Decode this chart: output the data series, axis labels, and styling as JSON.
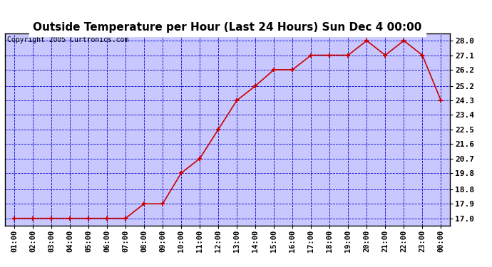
{
  "title": "Outside Temperature per Hour (Last 24 Hours) Sun Dec 4 00:00",
  "copyright": "Copyright 2005 Curtronics.com",
  "x_labels": [
    "01:00",
    "02:00",
    "03:00",
    "04:00",
    "05:00",
    "06:00",
    "07:00",
    "08:00",
    "09:00",
    "10:00",
    "11:00",
    "12:00",
    "13:00",
    "14:00",
    "15:00",
    "16:00",
    "17:00",
    "18:00",
    "19:00",
    "20:00",
    "21:00",
    "22:00",
    "23:00",
    "00:00"
  ],
  "y_values": [
    17.0,
    17.0,
    17.0,
    17.0,
    17.0,
    17.0,
    17.0,
    17.9,
    17.9,
    19.8,
    20.7,
    22.5,
    24.3,
    25.2,
    26.2,
    26.2,
    27.1,
    27.1,
    27.1,
    28.0,
    27.1,
    28.0,
    27.1,
    24.3
  ],
  "y_ticks": [
    17.0,
    17.9,
    18.8,
    19.8,
    20.7,
    21.6,
    22.5,
    23.4,
    24.3,
    25.2,
    26.2,
    27.1,
    28.0
  ],
  "ylim_min": 16.55,
  "ylim_max": 28.45,
  "line_color": "#cc0000",
  "marker_color": "#cc0000",
  "fig_bg_color": "#ffffff",
  "plot_bg_color": "#c8c8ff",
  "grid_color": "#0000cc",
  "border_color": "#000000",
  "title_fontsize": 11,
  "copyright_fontsize": 7,
  "tick_fontsize": 7.5,
  "ytick_fontsize": 8,
  "title_bg": "#ffffff"
}
